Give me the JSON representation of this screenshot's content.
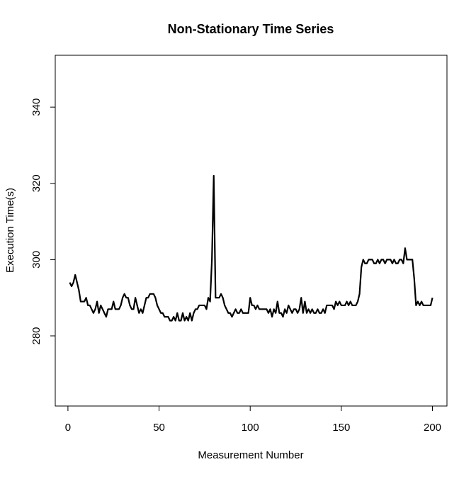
{
  "chart_data": {
    "type": "line",
    "title": "Non-Stationary Time Series",
    "xlabel": "Measurement Number",
    "ylabel": "Execution Time(s)",
    "x": [
      1,
      2,
      3,
      4,
      5,
      6,
      7,
      8,
      9,
      10,
      11,
      12,
      13,
      14,
      15,
      16,
      17,
      18,
      19,
      20,
      21,
      22,
      23,
      24,
      25,
      26,
      27,
      28,
      29,
      30,
      31,
      32,
      33,
      34,
      35,
      36,
      37,
      38,
      39,
      40,
      41,
      42,
      43,
      44,
      45,
      46,
      47,
      48,
      49,
      50,
      51,
      52,
      53,
      54,
      55,
      56,
      57,
      58,
      59,
      60,
      61,
      62,
      63,
      64,
      65,
      66,
      67,
      68,
      69,
      70,
      71,
      72,
      73,
      74,
      75,
      76,
      77,
      78,
      79,
      80,
      81,
      82,
      83,
      84,
      85,
      86,
      87,
      88,
      89,
      90,
      91,
      92,
      93,
      94,
      95,
      96,
      97,
      98,
      99,
      100,
      101,
      102,
      103,
      104,
      105,
      106,
      107,
      108,
      109,
      110,
      111,
      112,
      113,
      114,
      115,
      116,
      117,
      118,
      119,
      120,
      121,
      122,
      123,
      124,
      125,
      126,
      127,
      128,
      129,
      130,
      131,
      132,
      133,
      134,
      135,
      136,
      137,
      138,
      139,
      140,
      141,
      142,
      143,
      144,
      145,
      146,
      147,
      148,
      149,
      150,
      151,
      152,
      153,
      154,
      155,
      156,
      157,
      158,
      159,
      160,
      161,
      162,
      163,
      164,
      165,
      166,
      167,
      168,
      169,
      170,
      171,
      172,
      173,
      174,
      175,
      176,
      177,
      178,
      179,
      180,
      181,
      182,
      183,
      184,
      185,
      186,
      187,
      188,
      189,
      190,
      191,
      192,
      193,
      194,
      195,
      196,
      197,
      198,
      199,
      200
    ],
    "series": [
      {
        "name": "Execution Time",
        "color": "#000000",
        "values": [
          294,
          293,
          294,
          296,
          294,
          292,
          289,
          289,
          289,
          290,
          288,
          288,
          287,
          286,
          287,
          289,
          286,
          288,
          287,
          286,
          285,
          287,
          287,
          287,
          289,
          287,
          287,
          287,
          288,
          290,
          291,
          290,
          290,
          288,
          287,
          287,
          290,
          288,
          286,
          287,
          286,
          288,
          290,
          290,
          291,
          291,
          291,
          290,
          288,
          287,
          286,
          286,
          285,
          285,
          285,
          284,
          284,
          285,
          284,
          286,
          284,
          284,
          286,
          284,
          285,
          284,
          286,
          284,
          286,
          287,
          287,
          288,
          288,
          288,
          288,
          287,
          290,
          289,
          300,
          322,
          290,
          290,
          290,
          291,
          290,
          288,
          287,
          286,
          286,
          285,
          286,
          287,
          286,
          286,
          287,
          286,
          286,
          286,
          286,
          290,
          288,
          288,
          287,
          288,
          287,
          287,
          287,
          287,
          287,
          286,
          287,
          285,
          287,
          286,
          289,
          286,
          286,
          285,
          287,
          286,
          288,
          287,
          286,
          287,
          287,
          286,
          287,
          290,
          286,
          289,
          286,
          287,
          286,
          287,
          286,
          286,
          287,
          286,
          286,
          287,
          286,
          288,
          288,
          288,
          288,
          287,
          289,
          288,
          289,
          288,
          288,
          288,
          289,
          288,
          289,
          288,
          288,
          288,
          289,
          291,
          298,
          300,
          299,
          299,
          300,
          300,
          300,
          299,
          299,
          300,
          299,
          300,
          300,
          299,
          300,
          300,
          300,
          299,
          300,
          299,
          299,
          300,
          300,
          299,
          303,
          300,
          300,
          300,
          300,
          295,
          288,
          289,
          288,
          289,
          288,
          288,
          288,
          288,
          288,
          290
        ]
      }
    ],
    "xlim": [
      -6.96,
      207.96
    ],
    "xticks": [
      0,
      50,
      100,
      150,
      200
    ],
    "ylim": [
      261.6,
      353.6
    ],
    "yticks": [
      280,
      300,
      320,
      340
    ]
  }
}
